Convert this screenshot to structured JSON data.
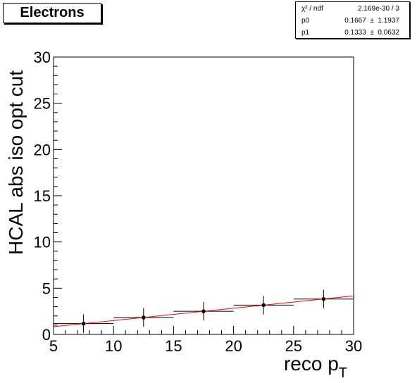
{
  "title": "Electrons",
  "stats": {
    "rows": [
      {
        "name": "χ² / ndf",
        "value": "2.169e-30 / 3"
      },
      {
        "name": "p0",
        "value": "0.1667  ±  1.1937"
      },
      {
        "name": "p1",
        "value": "0.1333  ±  0.0632"
      }
    ]
  },
  "chart_data": {
    "type": "scatter",
    "title": "Electrons",
    "xlabel_main": "reco p",
    "xlabel_sub": "T",
    "ylabel": "HCAL abs iso opt cut",
    "xlim": [
      5,
      30
    ],
    "ylim": [
      0,
      30
    ],
    "xticks": [
      5,
      10,
      15,
      20,
      25,
      30
    ],
    "yticks": [
      0,
      5,
      10,
      15,
      20,
      25,
      30
    ],
    "grid": false,
    "points": [
      {
        "x": 7.5,
        "y": 1.17,
        "xerr": 2.5,
        "yerr": 1.0
      },
      {
        "x": 12.5,
        "y": 1.83,
        "xerr": 2.5,
        "yerr": 1.0
      },
      {
        "x": 17.5,
        "y": 2.5,
        "xerr": 2.5,
        "yerr": 1.0
      },
      {
        "x": 22.5,
        "y": 3.17,
        "xerr": 2.5,
        "yerr": 1.0
      },
      {
        "x": 27.5,
        "y": 3.83,
        "xerr": 2.5,
        "yerr": 1.0
      }
    ],
    "fit": {
      "p0": 0.1667,
      "p1": 0.1333,
      "color": "#ff0000"
    },
    "marker_color": "#000000"
  }
}
